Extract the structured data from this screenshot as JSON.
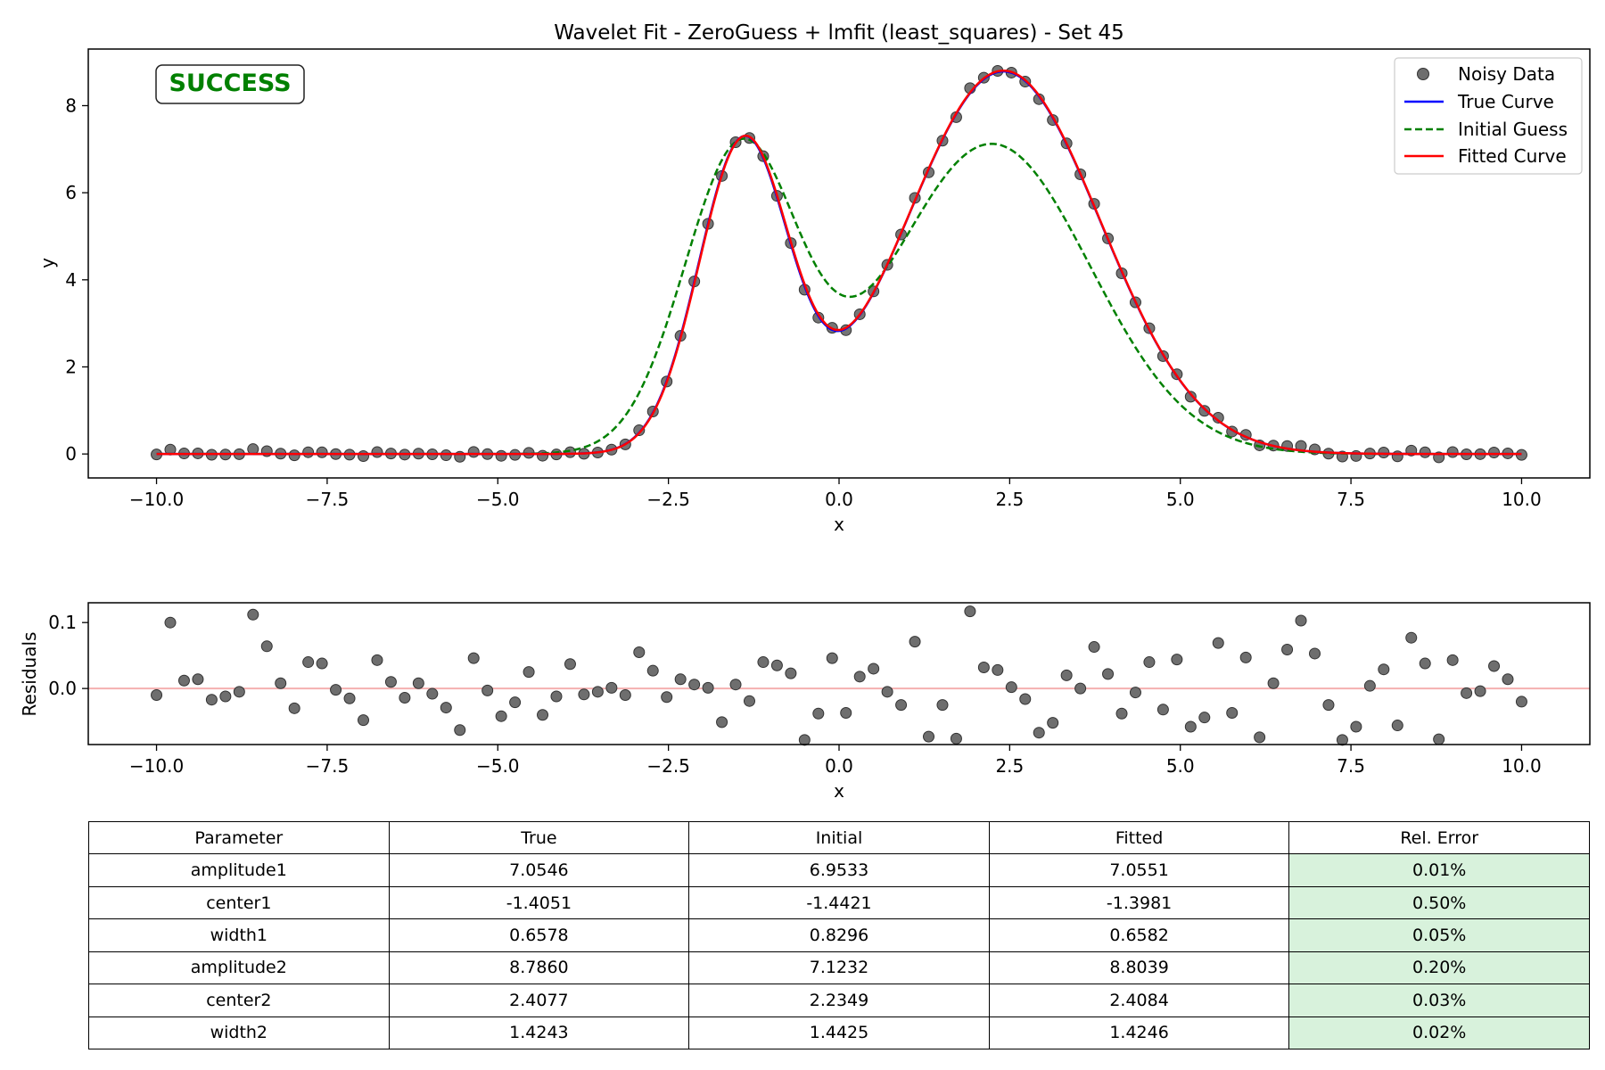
{
  "chart_data": [
    {
      "type": "line",
      "title": "Wavelet Fit - ZeroGuess + lmfit (least_squares) - Set 45",
      "xlabel": "x",
      "ylabel": "y",
      "xlim": [
        -11,
        11
      ],
      "ylim": [
        -0.55,
        9.3
      ],
      "xticks": [
        -10,
        -7.5,
        -5,
        -2.5,
        0,
        2.5,
        5,
        7.5,
        10
      ],
      "xtick_labels": [
        "−10.0",
        "−7.5",
        "−5.0",
        "−2.5",
        "0.0",
        "2.5",
        "5.0",
        "7.5",
        "10.0"
      ],
      "yticks": [
        0,
        2,
        4,
        6,
        8
      ],
      "ytick_labels": [
        "0",
        "2",
        "4",
        "6",
        "8"
      ],
      "grid": false,
      "legend_position": "top-right",
      "status_badge": "SUCCESS",
      "status_color": "#008000",
      "model": "sum of two gaussians",
      "series": [
        {
          "name": "Noisy Data",
          "kind": "scatter",
          "color": "#555555",
          "params_ref": "True"
        },
        {
          "name": "True Curve",
          "kind": "line",
          "color": "#0000ff",
          "dash": "solid",
          "params": {
            "a1": 7.0546,
            "c1": -1.4051,
            "w1": 0.6578,
            "a2": 8.786,
            "c2": 2.4077,
            "w2": 1.4243
          }
        },
        {
          "name": "Initial Guess",
          "kind": "line",
          "color": "#008000",
          "dash": "dashed",
          "params": {
            "a1": 6.9533,
            "c1": -1.4421,
            "w1": 0.8296,
            "a2": 7.1232,
            "c2": 2.2349,
            "w2": 1.4425
          }
        },
        {
          "name": "Fitted Curve",
          "kind": "line",
          "color": "#ff0000",
          "dash": "solid",
          "params": {
            "a1": 7.0551,
            "c1": -1.3981,
            "w1": 0.6582,
            "a2": 8.8039,
            "c2": 2.4084,
            "w2": 1.4246
          }
        }
      ],
      "x_samples": {
        "start": -10,
        "stop": 10,
        "count": 100
      }
    },
    {
      "type": "scatter",
      "xlabel": "x",
      "ylabel": "Residuals",
      "xlim": [
        -11,
        11
      ],
      "ylim": [
        -0.085,
        0.13
      ],
      "xticks": [
        -10,
        -7.5,
        -5,
        -2.5,
        0,
        2.5,
        5,
        7.5,
        10
      ],
      "xtick_labels": [
        "−10.0",
        "−7.5",
        "−5.0",
        "−2.5",
        "0.0",
        "2.5",
        "5.0",
        "7.5",
        "10.0"
      ],
      "yticks": [
        0.0,
        0.1
      ],
      "ytick_labels": [
        "0.0",
        "0.1"
      ],
      "zero_line_color": "#f4b0b0",
      "point_color": "#555555",
      "residuals": [
        -0.01,
        0.1,
        0.012,
        0.014,
        -0.017,
        -0.012,
        -0.005,
        0.112,
        0.064,
        0.008,
        -0.03,
        0.04,
        0.038,
        -0.002,
        -0.015,
        -0.048,
        0.043,
        0.01,
        -0.014,
        0.008,
        -0.008,
        -0.029,
        -0.063,
        0.046,
        -0.003,
        -0.042,
        -0.021,
        0.025,
        -0.04,
        -0.012,
        0.037,
        -0.009,
        -0.005,
        0.001,
        -0.01,
        0.055,
        0.027,
        -0.013,
        0.014,
        0.006,
        0.001,
        -0.051,
        0.006,
        -0.019,
        0.04,
        0.035,
        0.023,
        -0.078,
        -0.038,
        0.046,
        -0.037,
        0.018,
        0.03,
        -0.005,
        -0.025,
        0.071,
        -0.073,
        -0.025,
        -0.076,
        0.117,
        0.032,
        0.028,
        0.002,
        -0.016,
        -0.067,
        -0.052,
        0.02,
        0.0,
        0.063,
        0.022,
        -0.038,
        -0.006,
        0.04,
        -0.032,
        0.044,
        -0.058,
        -0.044,
        0.069,
        -0.037,
        0.047,
        -0.074,
        0.008,
        0.059,
        0.103,
        0.053,
        -0.025,
        -0.078,
        -0.058,
        0.004,
        0.029,
        -0.056,
        0.077,
        0.038,
        -0.077,
        0.043,
        -0.007,
        -0.004,
        0.034,
        0.014,
        -0.02
      ]
    }
  ],
  "table": {
    "headers": [
      "Parameter",
      "True",
      "Initial",
      "Fitted",
      "Rel. Error"
    ],
    "highlight_color": "#d8f2dc",
    "rows": [
      [
        "amplitude1",
        "7.0546",
        "6.9533",
        "7.0551",
        "0.01%"
      ],
      [
        "center1",
        "-1.4051",
        "-1.4421",
        "-1.3981",
        "0.50%"
      ],
      [
        "width1",
        "0.6578",
        "0.8296",
        "0.6582",
        "0.05%"
      ],
      [
        "amplitude2",
        "8.7860",
        "7.1232",
        "8.8039",
        "0.20%"
      ],
      [
        "center2",
        "2.4077",
        "2.2349",
        "2.4084",
        "0.03%"
      ],
      [
        "width2",
        "1.4243",
        "1.4425",
        "1.4246",
        "0.02%"
      ]
    ]
  }
}
